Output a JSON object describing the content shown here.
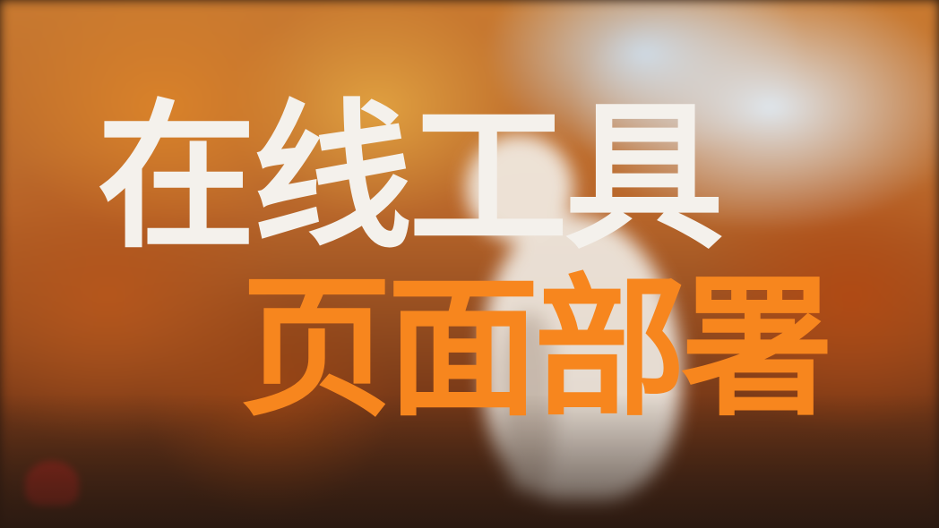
{
  "title": {
    "line1": "在线工具",
    "line2": "页面部署"
  },
  "colors": {
    "line1": "#f4f1ec",
    "line2": "#f7861e"
  }
}
